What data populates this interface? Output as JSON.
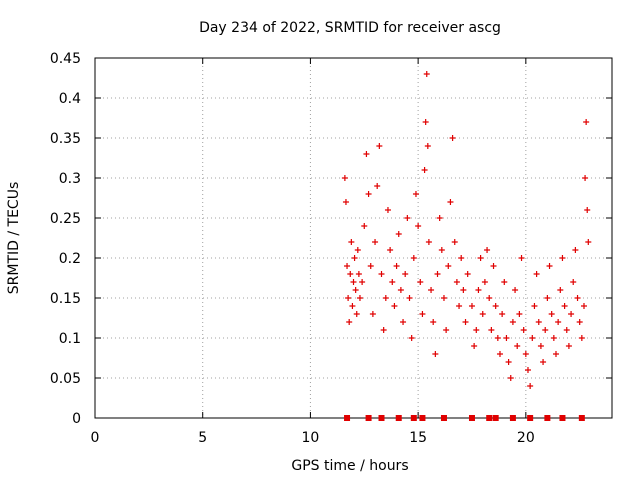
{
  "chart_data": {
    "type": "scatter",
    "title": "Day 234 of 2022, SRMTID for receiver ascg",
    "xlabel": "GPS time / hours",
    "ylabel": "SRMTID / TECUs",
    "xlim": [
      0,
      24
    ],
    "ylim": [
      0,
      0.45
    ],
    "grid": true,
    "xticks": [
      0,
      5,
      10,
      15,
      20
    ],
    "xtick_labels": [
      "0",
      "5",
      "10",
      "15",
      "20"
    ],
    "yticks": [
      0,
      0.05,
      0.1,
      0.15,
      0.2,
      0.25,
      0.3,
      0.35,
      0.4,
      0.45
    ],
    "ytick_labels": [
      "0",
      "0.05",
      "0.1",
      "0.15",
      "0.2",
      "0.25",
      "0.3",
      "0.35",
      "0.4",
      "0.45"
    ],
    "marker": "+",
    "color": "#e00000",
    "series": [
      {
        "name": "SRMTID",
        "x": [
          11.6,
          11.65,
          11.7,
          11.75,
          11.8,
          11.85,
          11.9,
          11.95,
          12.0,
          12.05,
          12.1,
          12.15,
          12.2,
          12.25,
          12.3,
          12.4,
          12.5,
          12.6,
          12.7,
          12.8,
          12.9,
          13.0,
          13.1,
          13.2,
          13.3,
          13.4,
          13.5,
          13.6,
          13.7,
          13.8,
          13.9,
          14.0,
          14.1,
          14.2,
          14.3,
          14.4,
          14.5,
          14.6,
          14.7,
          14.8,
          14.9,
          15.0,
          15.1,
          15.2,
          15.3,
          15.35,
          15.4,
          15.45,
          15.5,
          15.6,
          15.7,
          15.8,
          15.9,
          16.0,
          16.1,
          16.2,
          16.3,
          16.4,
          16.5,
          16.6,
          16.7,
          16.8,
          16.9,
          17.0,
          17.1,
          17.2,
          17.3,
          17.5,
          17.6,
          17.7,
          17.8,
          17.9,
          18.0,
          18.1,
          18.2,
          18.3,
          18.4,
          18.5,
          18.6,
          18.7,
          18.8,
          18.9,
          19.0,
          19.1,
          19.2,
          19.3,
          19.4,
          19.5,
          19.6,
          19.7,
          19.8,
          19.9,
          20.0,
          20.1,
          20.2,
          20.3,
          20.4,
          20.5,
          20.6,
          20.7,
          20.8,
          20.9,
          21.0,
          21.1,
          21.2,
          21.3,
          21.4,
          21.5,
          21.6,
          21.7,
          21.8,
          21.9,
          22.0,
          22.1,
          22.2,
          22.3,
          22.4,
          22.5,
          22.6,
          22.7,
          22.75,
          22.8,
          22.85,
          22.9
        ],
        "y": [
          0.3,
          0.27,
          0.19,
          0.15,
          0.12,
          0.18,
          0.22,
          0.14,
          0.17,
          0.2,
          0.16,
          0.13,
          0.21,
          0.18,
          0.15,
          0.17,
          0.24,
          0.33,
          0.28,
          0.19,
          0.13,
          0.22,
          0.29,
          0.34,
          0.18,
          0.11,
          0.15,
          0.26,
          0.21,
          0.17,
          0.14,
          0.19,
          0.23,
          0.16,
          0.12,
          0.18,
          0.25,
          0.15,
          0.1,
          0.2,
          0.28,
          0.24,
          0.17,
          0.13,
          0.31,
          0.37,
          0.43,
          0.34,
          0.22,
          0.16,
          0.12,
          0.08,
          0.18,
          0.25,
          0.21,
          0.15,
          0.11,
          0.19,
          0.27,
          0.35,
          0.22,
          0.17,
          0.14,
          0.2,
          0.16,
          0.12,
          0.18,
          0.14,
          0.09,
          0.11,
          0.16,
          0.2,
          0.13,
          0.17,
          0.21,
          0.15,
          0.11,
          0.19,
          0.14,
          0.1,
          0.08,
          0.13,
          0.17,
          0.1,
          0.07,
          0.05,
          0.12,
          0.16,
          0.09,
          0.13,
          0.2,
          0.11,
          0.08,
          0.06,
          0.04,
          0.1,
          0.14,
          0.18,
          0.12,
          0.09,
          0.07,
          0.11,
          0.15,
          0.19,
          0.13,
          0.1,
          0.08,
          0.12,
          0.16,
          0.2,
          0.14,
          0.11,
          0.09,
          0.13,
          0.17,
          0.21,
          0.15,
          0.12,
          0.1,
          0.14,
          0.3,
          0.37,
          0.26,
          0.22
        ]
      }
    ],
    "axis_markers": {
      "description": "small filled squares along the x-axis baseline",
      "x": [
        11.7,
        12.7,
        13.3,
        14.1,
        14.8,
        15.2,
        16.2,
        17.5,
        18.3,
        18.6,
        19.4,
        20.2,
        21.0,
        21.7,
        22.6
      ]
    }
  }
}
